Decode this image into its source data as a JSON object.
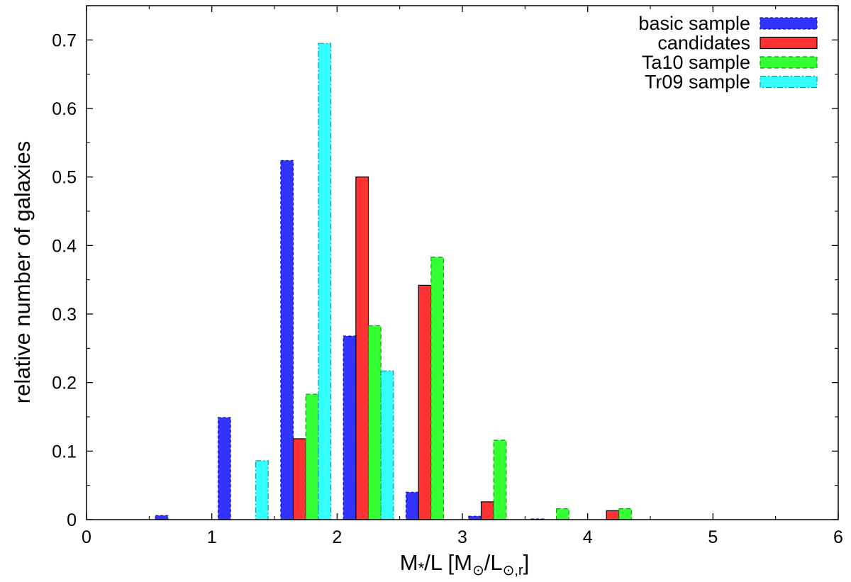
{
  "chart_data": {
    "type": "bar",
    "xlabel": {
      "main": "M",
      "main_sub": "*",
      "slash": "/L [M",
      "sun_sub": "⊙",
      "slash2": "/L",
      "sun_r_sub": "⊙,r",
      "close": "]"
    },
    "ylabel": "relative number of galaxies",
    "xlim": [
      0,
      6
    ],
    "ylim": [
      0,
      0.75
    ],
    "xticks": [
      "0",
      "1",
      "2",
      "3",
      "4",
      "5",
      "6"
    ],
    "yticks": [
      "0",
      "0.1",
      "0.2",
      "0.3",
      "0.4",
      "0.5",
      "0.6",
      "0.7"
    ],
    "bins": [
      0.5,
      1.0,
      1.5,
      2.0,
      2.5,
      3.0,
      3.5,
      4.0
    ],
    "legend_position": "top-right",
    "series": [
      {
        "name": "basic sample",
        "color": "#3333ff",
        "edge": "#1a1a99",
        "dash": "4,3",
        "values": [
          0.006,
          0.149,
          0.524,
          0.268,
          0.04,
          0.005,
          0.001,
          0.0
        ]
      },
      {
        "name": "candidates",
        "color": "#ff3333",
        "edge": "#000000",
        "dash": "",
        "values": [
          0.0,
          0.0,
          0.118,
          0.5,
          0.342,
          0.026,
          0.0,
          0.013
        ]
      },
      {
        "name": "Ta10 sample",
        "color": "#33ff33",
        "edge": "#1a991a",
        "dash": "6,4",
        "values": [
          0.0,
          0.0,
          0.183,
          0.283,
          0.383,
          0.116,
          0.016,
          0.016
        ]
      },
      {
        "name": "Tr09 sample",
        "color": "#33ffff",
        "edge": "#1a9999",
        "dash": "8,3,2,3",
        "values": [
          0.0,
          0.086,
          0.695,
          0.217,
          0.0,
          0.0,
          0.0,
          0.0
        ]
      }
    ]
  }
}
